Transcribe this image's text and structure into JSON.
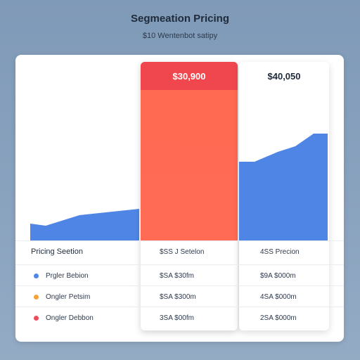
{
  "header": {
    "title": "Segmeation Pricing",
    "subtitle": "$10 Wentenbot satipy"
  },
  "columns": {
    "middle_price": "$30,900",
    "right_price": "$40,050"
  },
  "colors": {
    "blue": "#4f86e6",
    "orange": "#ff6b55",
    "red_header": "#f0474e",
    "dot_blue": "#4f86e6",
    "dot_orange": "#f5a23a",
    "dot_red": "#ef4d5a"
  },
  "table": {
    "header": {
      "label": "Pricing Seetion",
      "mid": "$SS J Setelon",
      "right": "4SS Precion"
    },
    "rows": [
      {
        "label": "Prgler Bebion",
        "mid": "$SA $30fm",
        "right": "$9A $000m",
        "dot": "blue"
      },
      {
        "label": "Ongler Petsim",
        "mid": "$SA $300m",
        "right": "4SA $000m",
        "dot": "orange"
      },
      {
        "label": "Ongler Debbon",
        "mid": "3SA $00fm",
        "right": "2SA $000m",
        "dot": "red"
      }
    ]
  }
}
